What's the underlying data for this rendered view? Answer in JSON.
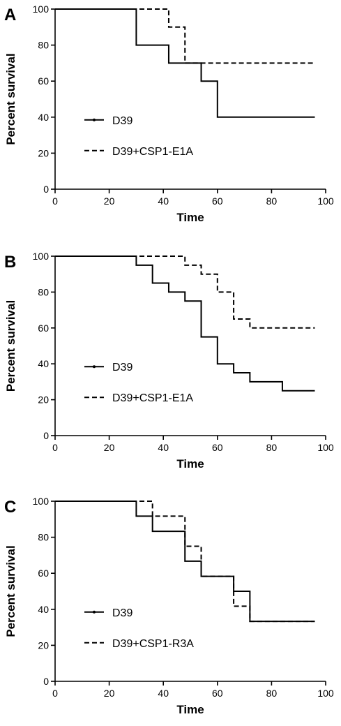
{
  "chart_data": [
    {
      "type": "line",
      "panel_label": "A",
      "xlabel": "Time",
      "ylabel": "Percent survival",
      "xlim": [
        0,
        100
      ],
      "ylim": [
        0,
        100
      ],
      "xticks": [
        "0",
        "20",
        "40",
        "60",
        "80",
        "100"
      ],
      "yticks": [
        "0",
        "20",
        "40",
        "60",
        "80",
        "100"
      ],
      "grid": false,
      "legend_position": "center-left",
      "series": [
        {
          "name": "D39",
          "style": "solid",
          "color": "#000000",
          "steps": [
            [
              0,
              100
            ],
            [
              30,
              80
            ],
            [
              42,
              70
            ],
            [
              54,
              60
            ],
            [
              60,
              40
            ],
            [
              96,
              40
            ]
          ]
        },
        {
          "name": "D39+CSP1-E1A",
          "style": "dashed",
          "color": "#000000",
          "steps": [
            [
              0,
              100
            ],
            [
              42,
              90
            ],
            [
              48,
              70
            ],
            [
              96,
              70
            ]
          ]
        }
      ]
    },
    {
      "type": "line",
      "panel_label": "B",
      "xlabel": "Time",
      "ylabel": "Percent survival",
      "xlim": [
        0,
        100
      ],
      "ylim": [
        0,
        100
      ],
      "xticks": [
        "0",
        "20",
        "40",
        "60",
        "80",
        "100"
      ],
      "yticks": [
        "0",
        "20",
        "40",
        "60",
        "80",
        "100"
      ],
      "grid": false,
      "legend_position": "center-left",
      "series": [
        {
          "name": "D39",
          "style": "solid",
          "color": "#000000",
          "steps": [
            [
              0,
              100
            ],
            [
              30,
              95
            ],
            [
              36,
              85
            ],
            [
              42,
              80
            ],
            [
              48,
              75
            ],
            [
              54,
              55
            ],
            [
              60,
              40
            ],
            [
              66,
              35
            ],
            [
              72,
              30
            ],
            [
              84,
              25
            ],
            [
              96,
              25
            ]
          ]
        },
        {
          "name": "D39+CSP1-E1A",
          "style": "dashed",
          "color": "#000000",
          "steps": [
            [
              0,
              100
            ],
            [
              48,
              95
            ],
            [
              54,
              90
            ],
            [
              60,
              80
            ],
            [
              66,
              65
            ],
            [
              72,
              60
            ],
            [
              96,
              60
            ]
          ]
        }
      ]
    },
    {
      "type": "line",
      "panel_label": "C",
      "xlabel": "Time",
      "ylabel": "Percent survival",
      "xlim": [
        0,
        100
      ],
      "ylim": [
        0,
        100
      ],
      "xticks": [
        "0",
        "20",
        "40",
        "60",
        "80",
        "100"
      ],
      "yticks": [
        "0",
        "20",
        "40",
        "60",
        "80",
        "100"
      ],
      "grid": false,
      "legend_position": "center-left",
      "series": [
        {
          "name": "D39",
          "style": "solid",
          "color": "#000000",
          "steps": [
            [
              0,
              100
            ],
            [
              30,
              91.7
            ],
            [
              36,
              83.3
            ],
            [
              48,
              66.7
            ],
            [
              54,
              58.3
            ],
            [
              66,
              50
            ],
            [
              72,
              33.3
            ],
            [
              96,
              33.3
            ]
          ]
        },
        {
          "name": "D39+CSP1-R3A",
          "style": "dashed",
          "color": "#000000",
          "steps": [
            [
              0,
              100
            ],
            [
              36,
              91.7
            ],
            [
              48,
              75
            ],
            [
              54,
              58.3
            ],
            [
              66,
              41.7
            ],
            [
              72,
              33.3
            ],
            [
              96,
              33.3
            ]
          ]
        }
      ]
    }
  ]
}
